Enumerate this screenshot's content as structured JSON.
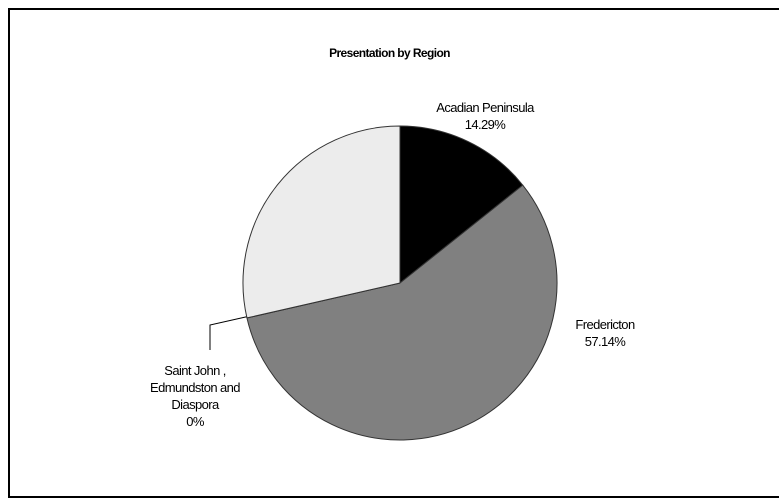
{
  "chart_data": {
    "type": "pie",
    "title": "Presentation by Region",
    "categories": [
      "Acadian Peninsula",
      "Fredericton",
      "Saint John , Edmundston and Diaspora",
      null
    ],
    "values": [
      14.29,
      57.14,
      0,
      28.57
    ],
    "value_labels": [
      "14.29%",
      "57.14%",
      "0%",
      null
    ],
    "colors": [
      "#000000",
      "#808080",
      "#ffffff",
      "#ececec"
    ]
  }
}
